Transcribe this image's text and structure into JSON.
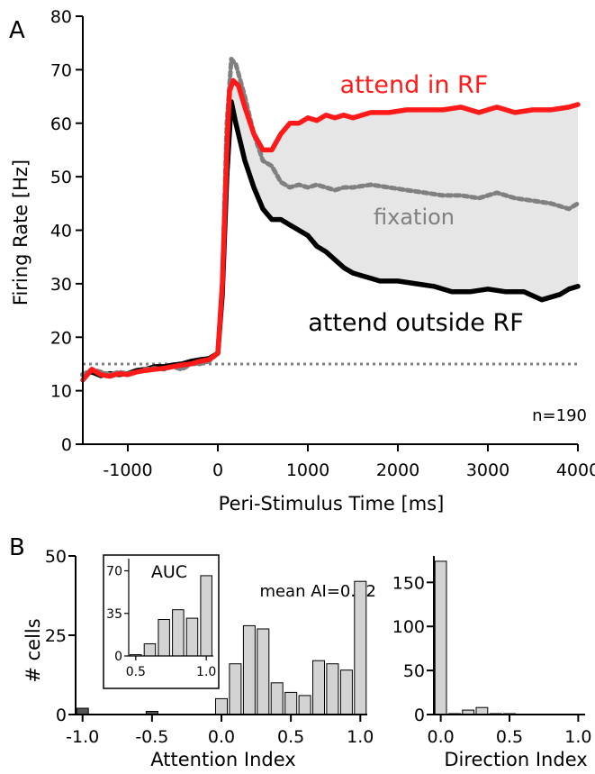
{
  "chart_data": [
    {
      "panel": "A",
      "type": "line",
      "xlabel": "Peri-Stimulus Time [ms]",
      "ylabel": "Firing Rate [Hz]",
      "xlim": [
        -1500,
        4000
      ],
      "ylim": [
        0,
        80
      ],
      "xticks": [
        -1000,
        0,
        1000,
        2000,
        3000,
        4000
      ],
      "yticks": [
        0,
        10,
        20,
        30,
        40,
        50,
        60,
        70,
        80
      ],
      "baseline": 15,
      "annotation": "n=190",
      "series": [
        {
          "name": "attend in RF",
          "color": "#ff1a1a",
          "style": "solid",
          "points": [
            [
              -1500,
              12
            ],
            [
              -1400,
              14
            ],
            [
              -1300,
              13
            ],
            [
              -1200,
              12.7
            ],
            [
              -1100,
              13.2
            ],
            [
              -1000,
              13
            ],
            [
              -900,
              13.5
            ],
            [
              -800,
              13.8
            ],
            [
              -700,
              14
            ],
            [
              -600,
              14.2
            ],
            [
              -500,
              14.5
            ],
            [
              -400,
              14.8
            ],
            [
              -300,
              15
            ],
            [
              -200,
              15.5
            ],
            [
              -100,
              15.8
            ],
            [
              0,
              17
            ],
            [
              50,
              30
            ],
            [
              100,
              55
            ],
            [
              130,
              66
            ],
            [
              170,
              68
            ],
            [
              230,
              67
            ],
            [
              300,
              63
            ],
            [
              400,
              58
            ],
            [
              500,
              55
            ],
            [
              600,
              55
            ],
            [
              700,
              58
            ],
            [
              800,
              60
            ],
            [
              900,
              60
            ],
            [
              1000,
              61
            ],
            [
              1100,
              60.5
            ],
            [
              1200,
              61.5
            ],
            [
              1300,
              61
            ],
            [
              1400,
              61.5
            ],
            [
              1500,
              61
            ],
            [
              1700,
              62
            ],
            [
              1900,
              62
            ],
            [
              2100,
              62.5
            ],
            [
              2300,
              62.5
            ],
            [
              2500,
              62.5
            ],
            [
              2700,
              63
            ],
            [
              2900,
              62
            ],
            [
              3100,
              63
            ],
            [
              3300,
              62
            ],
            [
              3500,
              62.5
            ],
            [
              3700,
              62.5
            ],
            [
              3900,
              63
            ],
            [
              4000,
              63.5
            ]
          ]
        },
        {
          "name": "fixation",
          "color": "#808080",
          "style": "dashed",
          "points": [
            [
              -1500,
              13
            ],
            [
              -1400,
              14
            ],
            [
              -1300,
              13.5
            ],
            [
              -1200,
              13
            ],
            [
              -1100,
              13.5
            ],
            [
              -1000,
              13.2
            ],
            [
              -900,
              13.5
            ],
            [
              -800,
              14
            ],
            [
              -700,
              14.2
            ],
            [
              -600,
              14
            ],
            [
              -500,
              14.5
            ],
            [
              -400,
              14
            ],
            [
              -300,
              15
            ],
            [
              -200,
              15
            ],
            [
              -100,
              15.5
            ],
            [
              0,
              17
            ],
            [
              50,
              30
            ],
            [
              100,
              60
            ],
            [
              150,
              72
            ],
            [
              200,
              71
            ],
            [
              300,
              65
            ],
            [
              400,
              58
            ],
            [
              500,
              53
            ],
            [
              600,
              52
            ],
            [
              700,
              49
            ],
            [
              800,
              48
            ],
            [
              900,
              48.5
            ],
            [
              1000,
              48
            ],
            [
              1100,
              48.5
            ],
            [
              1200,
              48
            ],
            [
              1300,
              47.5
            ],
            [
              1400,
              48
            ],
            [
              1500,
              48
            ],
            [
              1700,
              48.5
            ],
            [
              1900,
              48
            ],
            [
              2100,
              47.5
            ],
            [
              2300,
              47
            ],
            [
              2500,
              46.5
            ],
            [
              2700,
              46.5
            ],
            [
              2900,
              46
            ],
            [
              3100,
              47
            ],
            [
              3300,
              46
            ],
            [
              3500,
              45.5
            ],
            [
              3700,
              45
            ],
            [
              3900,
              44
            ],
            [
              4000,
              45
            ]
          ]
        },
        {
          "name": "attend outside RF",
          "color": "#000000",
          "style": "solid",
          "points": [
            [
              -1500,
              13
            ],
            [
              -1400,
              13.5
            ],
            [
              -1300,
              12.8
            ],
            [
              -1200,
              13.2
            ],
            [
              -1100,
              13
            ],
            [
              -1000,
              13.2
            ],
            [
              -900,
              13.8
            ],
            [
              -800,
              14
            ],
            [
              -700,
              14.5
            ],
            [
              -600,
              14.5
            ],
            [
              -500,
              14.8
            ],
            [
              -400,
              15
            ],
            [
              -300,
              15.5
            ],
            [
              -200,
              15.8
            ],
            [
              -100,
              16
            ],
            [
              0,
              17
            ],
            [
              50,
              28
            ],
            [
              100,
              50
            ],
            [
              150,
              64
            ],
            [
              200,
              60
            ],
            [
              300,
              53
            ],
            [
              400,
              48
            ],
            [
              500,
              44
            ],
            [
              600,
              42
            ],
            [
              700,
              42
            ],
            [
              800,
              41
            ],
            [
              900,
              40
            ],
            [
              1000,
              39
            ],
            [
              1100,
              37
            ],
            [
              1200,
              36
            ],
            [
              1300,
              34.5
            ],
            [
              1400,
              33
            ],
            [
              1500,
              32
            ],
            [
              1600,
              31.5
            ],
            [
              1700,
              31
            ],
            [
              1800,
              30.5
            ],
            [
              2000,
              30.5
            ],
            [
              2200,
              30
            ],
            [
              2400,
              29.5
            ],
            [
              2600,
              28.5
            ],
            [
              2800,
              28.5
            ],
            [
              3000,
              29
            ],
            [
              3200,
              28.5
            ],
            [
              3400,
              28.5
            ],
            [
              3600,
              27
            ],
            [
              3800,
              28
            ],
            [
              3900,
              29
            ],
            [
              4000,
              29.5
            ]
          ]
        }
      ],
      "labels": [
        "attend in RF",
        "fixation",
        "attend outside RF"
      ]
    },
    {
      "panel": "B-left",
      "type": "bar",
      "xlabel": "Attention Index",
      "ylabel": "# cells",
      "xlim": [
        -1.05,
        1.05
      ],
      "ylim": [
        0,
        50
      ],
      "xticks": [
        "-1.0",
        "-0.5",
        "0.0",
        "0.5",
        "1.0"
      ],
      "yticks": [
        0,
        25,
        50
      ],
      "annotation": "mean AI=0.62",
      "bin_width": 0.1,
      "bins": [
        {
          "x": -1.0,
          "value": 2,
          "color": "#555555"
        },
        {
          "x": -0.5,
          "value": 1,
          "color": "#555555"
        },
        {
          "x": 0.0,
          "value": 5,
          "color": "#d3d3d3"
        },
        {
          "x": 0.1,
          "value": 16,
          "color": "#d3d3d3"
        },
        {
          "x": 0.2,
          "value": 28,
          "color": "#d3d3d3"
        },
        {
          "x": 0.3,
          "value": 27,
          "color": "#d3d3d3"
        },
        {
          "x": 0.4,
          "value": 10,
          "color": "#d3d3d3"
        },
        {
          "x": 0.5,
          "value": 7,
          "color": "#d3d3d3"
        },
        {
          "x": 0.6,
          "value": 6,
          "color": "#d3d3d3"
        },
        {
          "x": 0.7,
          "value": 17,
          "color": "#d3d3d3"
        },
        {
          "x": 0.8,
          "value": 16,
          "color": "#d3d3d3"
        },
        {
          "x": 0.9,
          "value": 14,
          "color": "#d3d3d3"
        },
        {
          "x": 1.0,
          "value": 42,
          "color": "#d3d3d3"
        }
      ],
      "inset": {
        "title": "AUC",
        "type": "bar",
        "xticks": [
          "0.5",
          "1.0"
        ],
        "yticks": [
          0,
          35,
          70
        ],
        "ylim": [
          0,
          80
        ],
        "bins": [
          {
            "x": 0.5,
            "value": 1
          },
          {
            "x": 0.6,
            "value": 10
          },
          {
            "x": 0.7,
            "value": 30
          },
          {
            "x": 0.8,
            "value": 38
          },
          {
            "x": 0.9,
            "value": 31
          },
          {
            "x": 1.0,
            "value": 66
          }
        ]
      }
    },
    {
      "panel": "B-right",
      "type": "bar",
      "xlabel": "Direction Index",
      "ylabel": "",
      "xlim": [
        -0.05,
        1.05
      ],
      "ylim": [
        0,
        180
      ],
      "xticks": [
        "0.0",
        "0.5",
        "1.0"
      ],
      "yticks": [
        0,
        50,
        100,
        150
      ],
      "bin_width": 0.1,
      "bins": [
        {
          "x": 0.0,
          "value": 174
        },
        {
          "x": 0.1,
          "value": 1
        },
        {
          "x": 0.2,
          "value": 5
        },
        {
          "x": 0.3,
          "value": 8
        },
        {
          "x": 0.4,
          "value": 1
        },
        {
          "x": 0.5,
          "value": 1
        }
      ]
    }
  ],
  "panel_labels": [
    "A",
    "B"
  ],
  "colors": {
    "fill": "#e6e6e6",
    "baseline": "#808080"
  }
}
